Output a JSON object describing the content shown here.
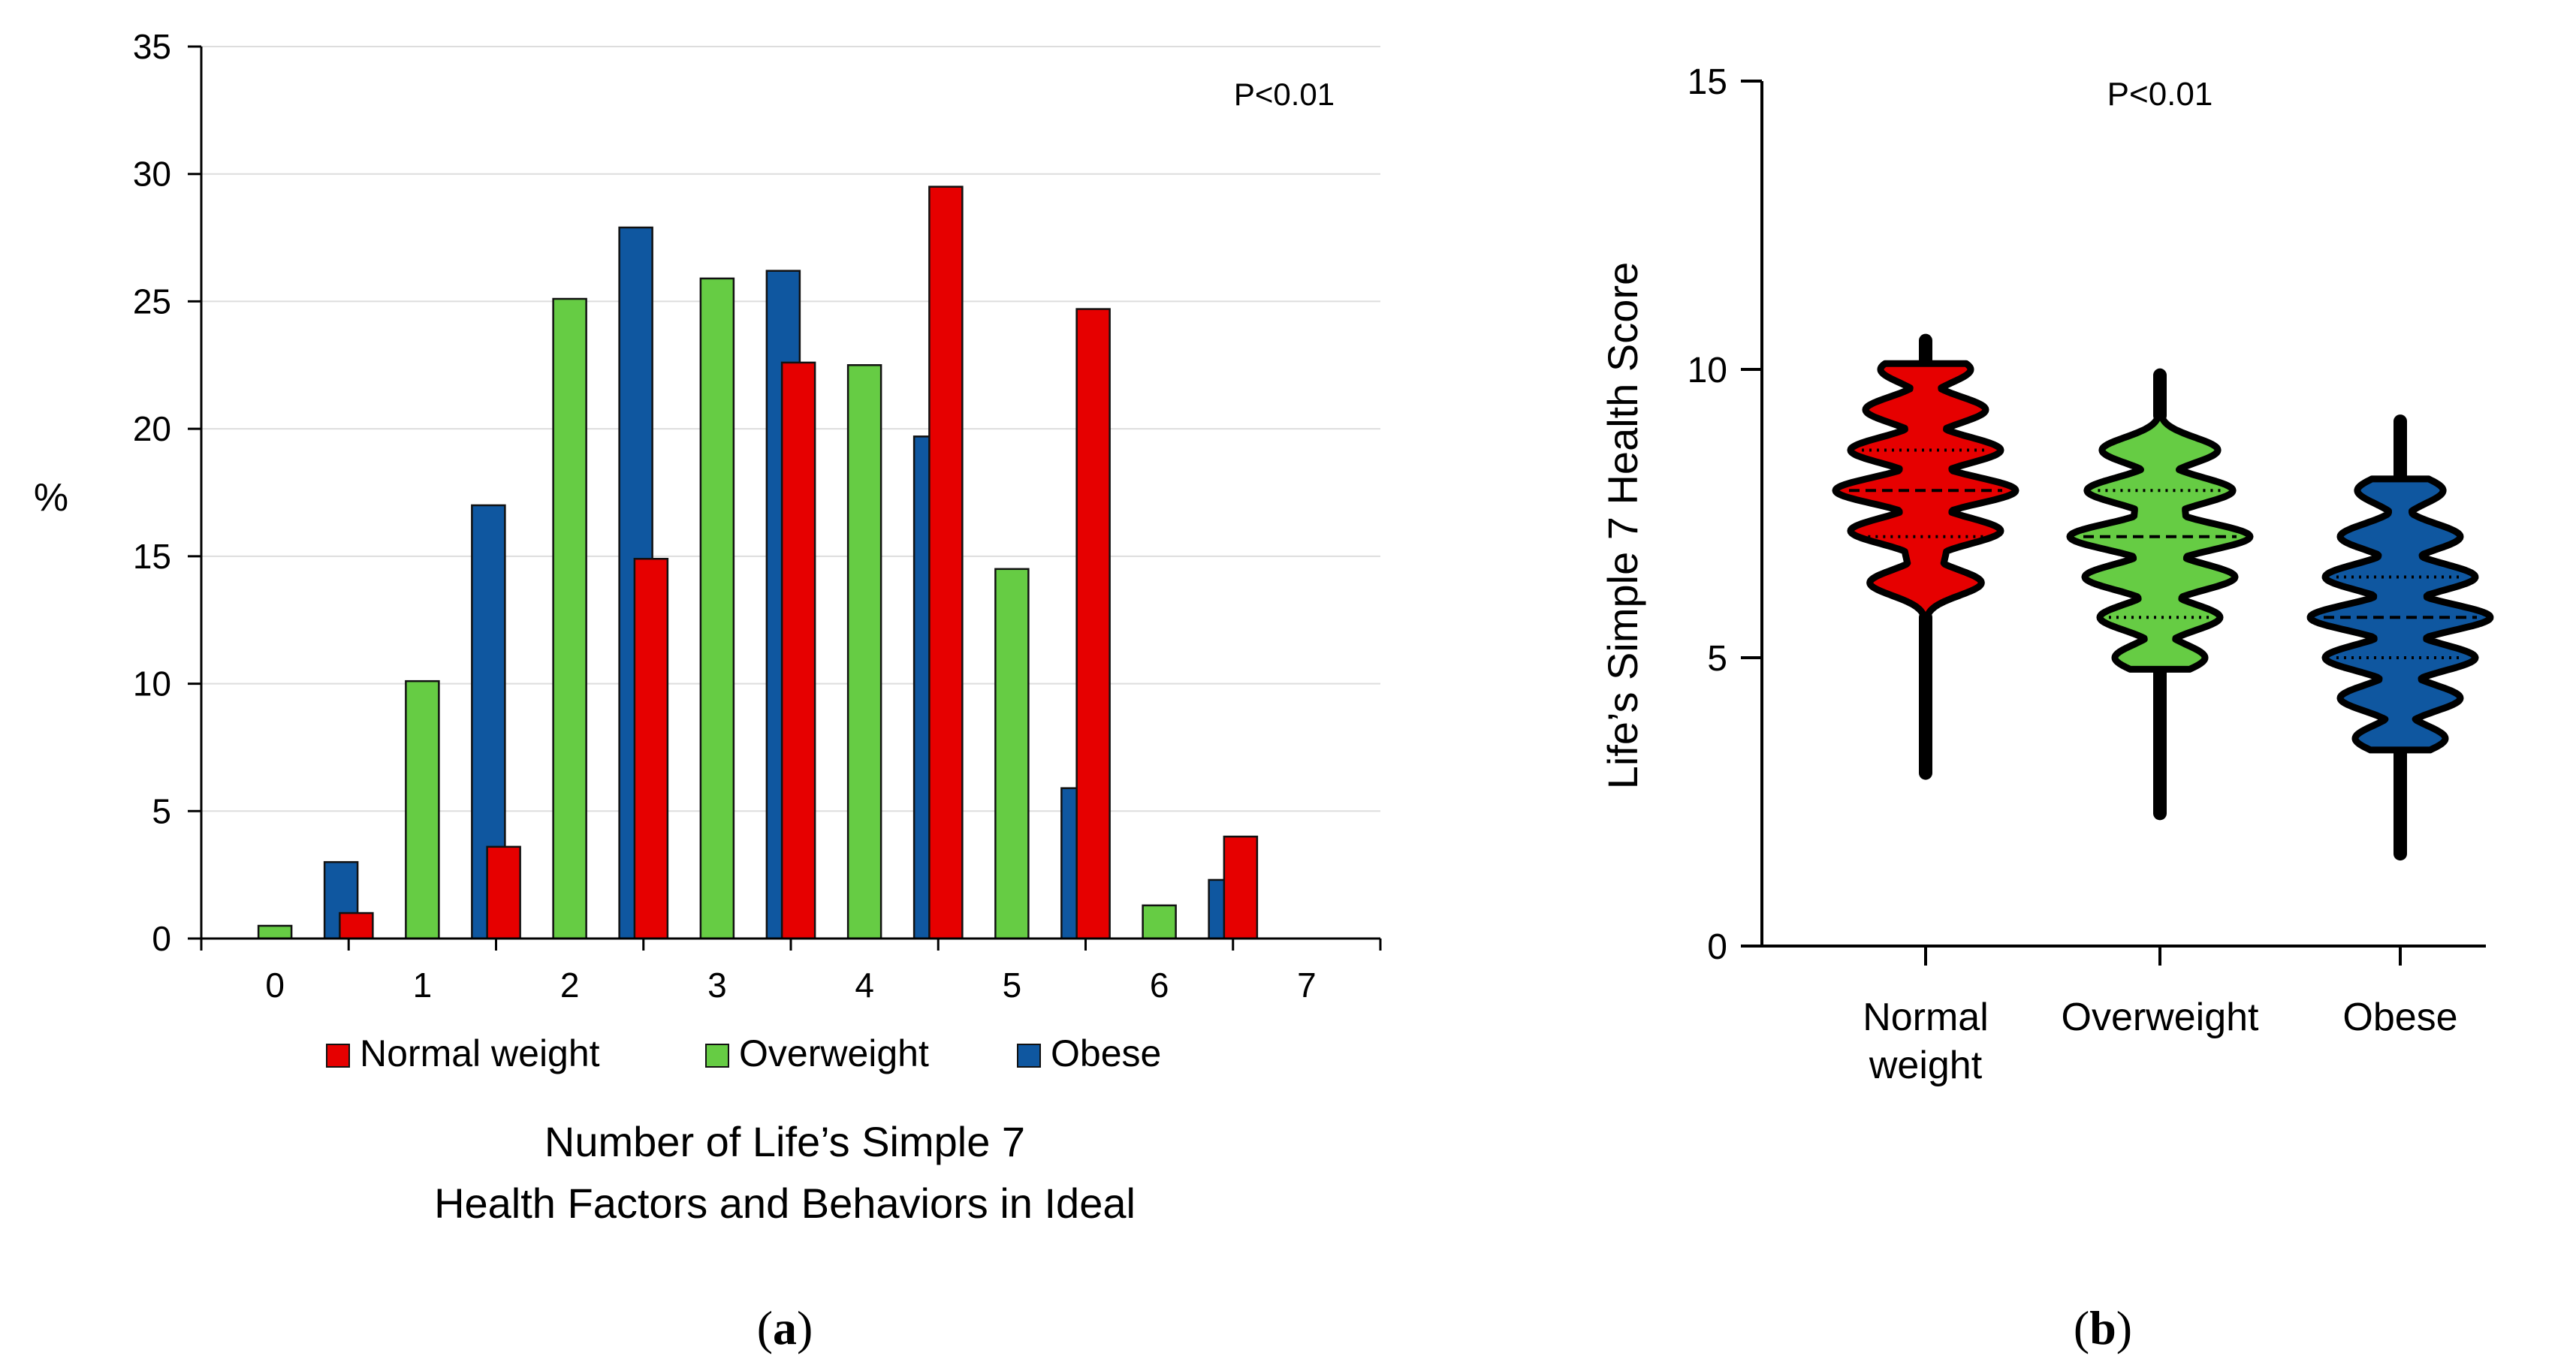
{
  "colors": {
    "normal": "#e60000",
    "overweight": "#66cc44",
    "obese": "#0f57a0",
    "axis": "#000000",
    "grid": "#dddddd"
  },
  "chart_data": [
    {
      "id": "a",
      "type": "bar",
      "panel_label": "(a)",
      "panel_letter": "a",
      "ylabel": "%",
      "xlabel_lines": [
        "Number of Life’s Simple 7",
        "Health Factors and Behaviors in Ideal"
      ],
      "annotation": "P<0.01",
      "ylim": [
        0,
        35
      ],
      "yticks": [
        0,
        5,
        10,
        15,
        20,
        25,
        30,
        35
      ],
      "grid": true,
      "legend_position": "bottom",
      "categories": [
        "0",
        "1",
        "2",
        "3",
        "4",
        "5",
        "6",
        "7"
      ],
      "series": [
        {
          "name": "Normal weight",
          "color_key": "normal",
          "values": [
            0,
            1,
            3.6,
            14.9,
            22.6,
            29.5,
            24.7,
            4
          ]
        },
        {
          "name": "Overweight",
          "color_key": "overweight",
          "values": [
            0.5,
            10.1,
            25.1,
            25.9,
            22.5,
            14.5,
            1.3,
            0
          ]
        },
        {
          "name": "Obese",
          "color_key": "obese",
          "values": [
            3,
            17,
            27.9,
            26.2,
            19.7,
            5.9,
            2.3,
            0
          ]
        }
      ]
    },
    {
      "id": "b",
      "type": "violin",
      "panel_label": "(b)",
      "panel_letter": "b",
      "ylabel": "Life’s Simple 7 Health Score",
      "annotation": "P<0.01",
      "ylim": [
        0,
        15
      ],
      "yticks": [
        0,
        5,
        10,
        15
      ],
      "grid": false,
      "groups": [
        {
          "name_lines": [
            "Normal",
            "weight"
          ],
          "color_key": "normal",
          "min": 3,
          "max": 10.5,
          "median": 7.9,
          "q1": 7.1,
          "q3": 8.6,
          "fill_min": 5.7,
          "fill_max": 10.1,
          "modes": [
            6.3,
            7.2,
            7.9,
            8.6,
            9.3,
            10
          ]
        },
        {
          "name_lines": [
            "Overweight"
          ],
          "color_key": "overweight",
          "min": 2.3,
          "max": 9.9,
          "median": 7.1,
          "q1": 5.7,
          "q3": 7.9,
          "fill_min": 4.8,
          "fill_max": 9.2,
          "modes": [
            5,
            5.7,
            6.4,
            7.1,
            7.9,
            8.6
          ]
        },
        {
          "name_lines": [
            "Obese"
          ],
          "color_key": "obese",
          "min": 1.6,
          "max": 9.1,
          "median": 5.7,
          "q1": 5,
          "q3": 6.4,
          "fill_min": 3.4,
          "fill_max": 8.1,
          "modes": [
            3.6,
            4.3,
            5,
            5.7,
            6.4,
            7.1,
            7.9
          ]
        }
      ]
    }
  ]
}
